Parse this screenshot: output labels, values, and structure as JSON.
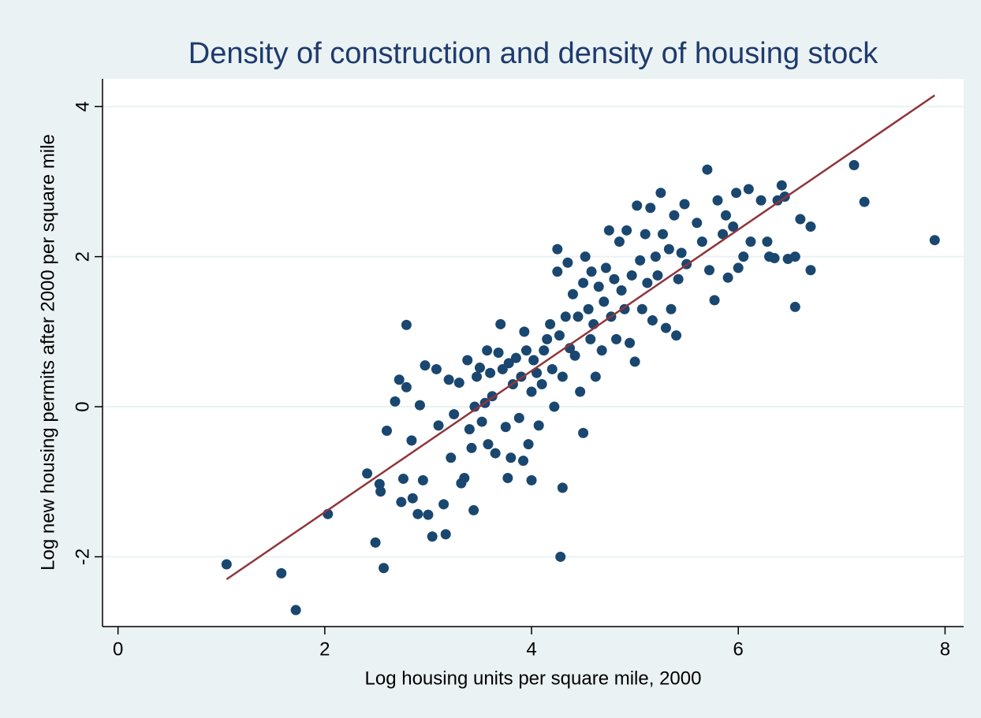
{
  "chart_data": {
    "type": "scatter",
    "title": "Density of construction and density of housing stock",
    "x_label": "Log housing units per square mile, 2000",
    "y_label": "Log new housing permits after 2000 per square mile",
    "xlim": [
      -0.15,
      8.18
    ],
    "ylim": [
      -2.93,
      4.37
    ],
    "xticks": [
      0,
      2,
      4,
      6,
      8
    ],
    "yticks": [
      -2,
      0,
      2,
      4
    ],
    "grid": true,
    "series": [
      {
        "color": "#1a476f",
        "x": [
          1.05,
          1.58,
          1.72,
          2.03,
          2.41,
          2.49,
          2.53,
          2.54,
          2.57,
          2.6,
          2.68,
          2.72,
          2.74,
          2.76,
          2.79,
          2.79,
          2.84,
          2.85,
          2.9,
          2.92,
          2.95,
          2.97,
          3.0,
          3.04,
          3.08,
          3.1,
          3.15,
          3.17,
          3.2,
          3.22,
          3.25,
          3.3,
          3.32,
          3.35,
          3.38,
          3.4,
          3.42,
          3.44,
          3.45,
          3.47,
          3.5,
          3.52,
          3.55,
          3.57,
          3.58,
          3.6,
          3.62,
          3.65,
          3.68,
          3.7,
          3.72,
          3.75,
          3.77,
          3.78,
          3.8,
          3.82,
          3.85,
          3.88,
          3.9,
          3.92,
          3.93,
          3.95,
          3.97,
          4.0,
          4.0,
          4.02,
          4.05,
          4.07,
          4.1,
          4.12,
          4.15,
          4.18,
          4.2,
          4.22,
          4.25,
          4.25,
          4.27,
          4.28,
          4.3,
          4.3,
          4.33,
          4.35,
          4.37,
          4.4,
          4.42,
          4.45,
          4.47,
          4.5,
          4.5,
          4.52,
          4.55,
          4.57,
          4.58,
          4.6,
          4.62,
          4.65,
          4.68,
          4.7,
          4.72,
          4.75,
          4.77,
          4.8,
          4.82,
          4.85,
          4.87,
          4.9,
          4.92,
          4.95,
          4.97,
          5.0,
          5.02,
          5.05,
          5.07,
          5.1,
          5.12,
          5.15,
          5.17,
          5.2,
          5.22,
          5.25,
          5.27,
          5.3,
          5.33,
          5.35,
          5.38,
          5.4,
          5.42,
          5.45,
          5.48,
          5.5,
          5.6,
          5.65,
          5.7,
          5.72,
          5.77,
          5.8,
          5.85,
          5.88,
          5.9,
          5.95,
          5.98,
          6.0,
          6.05,
          6.1,
          6.12,
          6.22,
          6.28,
          6.3,
          6.35,
          6.38,
          6.42,
          6.45,
          6.48,
          6.55,
          6.55,
          6.6,
          6.7,
          6.7,
          7.12,
          7.22,
          7.9
        ],
        "y": [
          -2.1,
          -2.22,
          -2.71,
          -1.43,
          -0.89,
          -1.81,
          -1.03,
          -1.13,
          -2.15,
          -0.32,
          0.07,
          0.36,
          -1.27,
          -0.96,
          1.09,
          0.26,
          -0.45,
          -1.22,
          -1.43,
          0.02,
          -0.98,
          0.55,
          -1.44,
          -1.73,
          0.5,
          -0.25,
          -1.3,
          -1.7,
          0.36,
          -0.68,
          -0.1,
          0.32,
          -1.02,
          -0.95,
          0.62,
          -0.3,
          -0.55,
          -1.38,
          0.0,
          0.4,
          0.52,
          -0.2,
          0.05,
          0.75,
          -0.5,
          0.45,
          0.14,
          -0.62,
          0.72,
          1.1,
          0.5,
          -0.27,
          -0.95,
          0.58,
          -0.68,
          0.3,
          0.65,
          -0.15,
          0.4,
          -0.72,
          1.0,
          0.75,
          -0.5,
          -0.98,
          0.2,
          0.62,
          0.45,
          -0.25,
          0.3,
          0.75,
          0.9,
          1.1,
          0.5,
          0.0,
          1.8,
          2.1,
          0.95,
          -2.0,
          -1.08,
          0.4,
          1.2,
          1.92,
          0.78,
          1.5,
          0.68,
          1.2,
          0.2,
          1.65,
          -0.35,
          2.0,
          1.3,
          0.9,
          1.8,
          1.1,
          0.4,
          1.6,
          0.75,
          1.4,
          1.85,
          2.35,
          1.2,
          1.7,
          0.9,
          2.2,
          1.55,
          1.3,
          2.35,
          0.85,
          1.75,
          0.6,
          2.68,
          1.95,
          1.3,
          2.3,
          1.65,
          2.65,
          1.15,
          2.0,
          1.75,
          2.85,
          2.3,
          1.05,
          2.1,
          1.3,
          2.55,
          0.95,
          1.7,
          2.05,
          2.7,
          1.9,
          2.45,
          2.2,
          3.16,
          1.82,
          1.42,
          2.75,
          2.3,
          2.55,
          1.72,
          2.4,
          2.85,
          1.85,
          2.0,
          2.9,
          2.2,
          2.75,
          2.2,
          2.0,
          1.98,
          2.75,
          2.95,
          2.8,
          1.97,
          2.0,
          1.33,
          2.5,
          2.4,
          1.82,
          3.22,
          2.73,
          2.22
        ]
      }
    ],
    "fit_line": {
      "color": "#90353b",
      "x": [
        1.05,
        7.9
      ],
      "y": [
        -2.3,
        4.15
      ]
    }
  }
}
